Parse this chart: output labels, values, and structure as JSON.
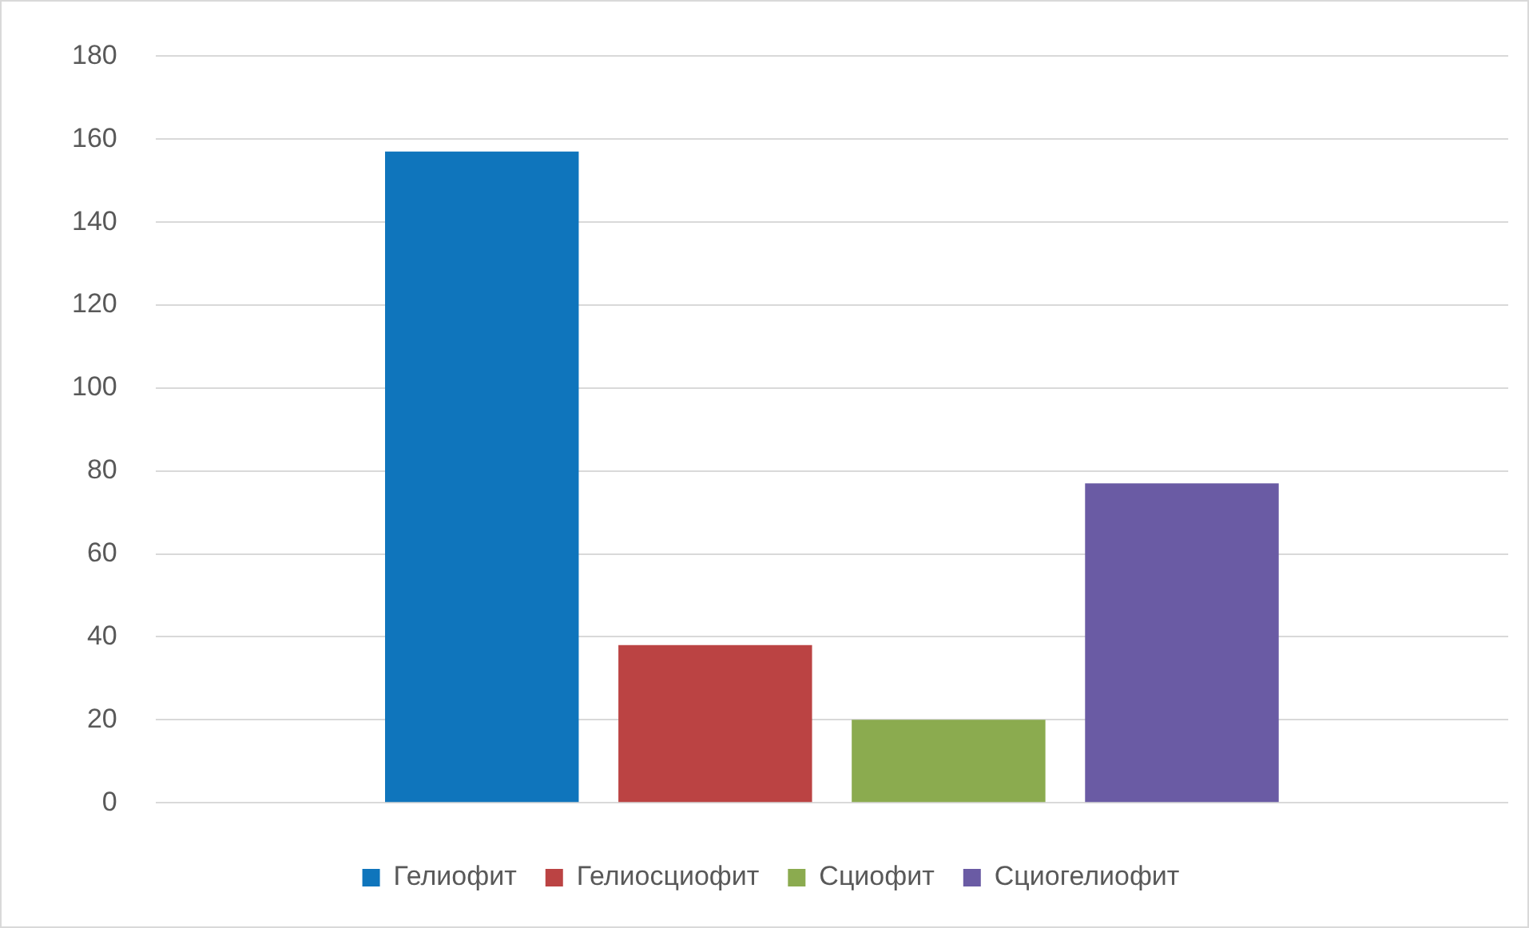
{
  "chart_data": {
    "type": "bar",
    "categories": [
      null
    ],
    "series": [
      {
        "name": "Гелиофит",
        "color": "#0f75bc",
        "values": [
          157
        ]
      },
      {
        "name": "Гелиосциофит",
        "color": "#bb4343",
        "values": [
          38
        ]
      },
      {
        "name": "Сциофит",
        "color": "#8bab4f",
        "values": [
          20
        ]
      },
      {
        "name": "Сциогелиофит",
        "color": "#6a5ba4",
        "values": [
          77
        ]
      }
    ],
    "ylim": [
      0,
      180
    ],
    "yticks": [
      0,
      20,
      40,
      60,
      80,
      100,
      120,
      140,
      160,
      180
    ],
    "grid": "y",
    "legend": "bottom"
  }
}
